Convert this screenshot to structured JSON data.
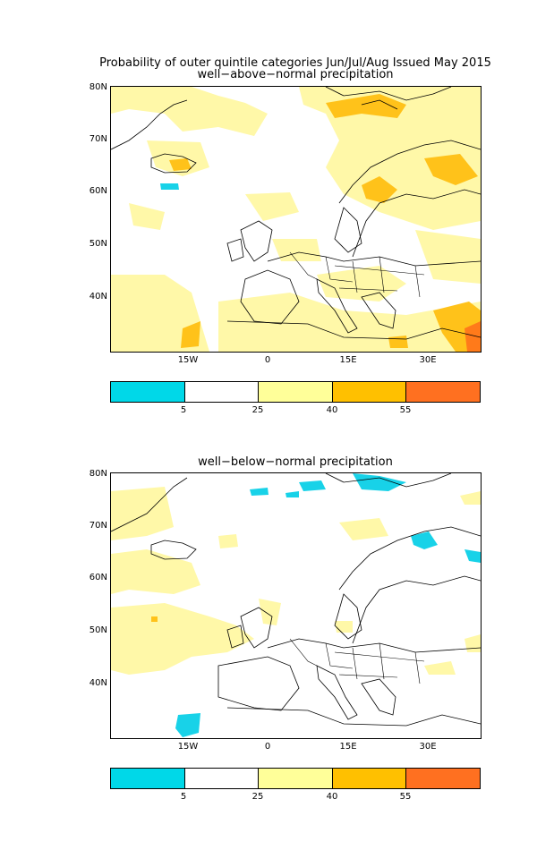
{
  "title_line1": "Probability of outer quintile categories Jun/Jul/Aug Issued May 2015",
  "panels": [
    {
      "subtitle": "well−above−normal precipitation"
    },
    {
      "subtitle": "well−below−normal precipitation"
    }
  ],
  "lat_labels": [
    "80N",
    "70N",
    "60N",
    "50N",
    "40N"
  ],
  "lon_labels": [
    "15W",
    "0",
    "15E",
    "30E"
  ],
  "colorbar": {
    "colors": [
      "#00d8e8",
      "#ffffff",
      "#ffff99",
      "#ffc000",
      "#ff7020"
    ],
    "labels": [
      "5",
      "25",
      "40",
      "55"
    ]
  },
  "map_colors": {
    "land_line": "#000000",
    "low": "#18d2e8",
    "pale": "#fff8a8",
    "mid": "#ffc21a",
    "high": "#ff7a1a"
  }
}
